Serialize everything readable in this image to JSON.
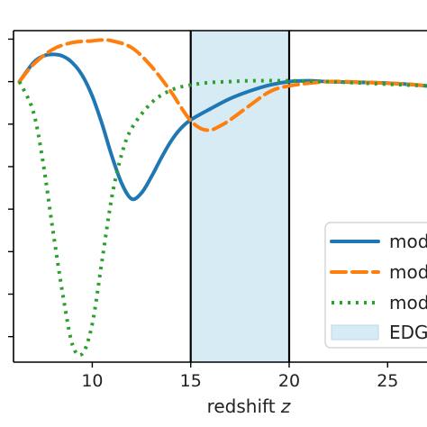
{
  "chart_data": {
    "type": "line",
    "xlabel": "redshift z",
    "xlim": [
      6,
      27
    ],
    "ylim": [
      -3.3,
      0.6
    ],
    "x_ticks": [
      10,
      15,
      20,
      25
    ],
    "y_ticks": [
      -3,
      -2.5,
      -2,
      -1.5,
      -1,
      -0.5,
      0,
      0.5
    ],
    "x_tick_labels": [
      "10",
      "15",
      "20",
      "25"
    ],
    "grid": false,
    "legend": {
      "position": "right",
      "entries": [
        "mod",
        "mod",
        "mod",
        "EDG"
      ]
    },
    "band": {
      "x_start": 15,
      "x_end": 20,
      "color": "#d7ebf5",
      "label": "EDG"
    },
    "vlines": [
      15,
      20
    ],
    "series": [
      {
        "name": "mod",
        "color": "#1f77b4",
        "style": "solid",
        "x": [
          6.3,
          7,
          7.5,
          8,
          8.5,
          9,
          9.5,
          10,
          10.5,
          11,
          11.5,
          12,
          12.5,
          13,
          13.5,
          14,
          14.5,
          15,
          16,
          17,
          18,
          19,
          20,
          21,
          22,
          24,
          26,
          27
        ],
        "y": [
          0,
          0.22,
          0.3,
          0.32,
          0.3,
          0.22,
          0.07,
          -0.17,
          -0.5,
          -0.88,
          -1.2,
          -1.38,
          -1.31,
          -1.12,
          -0.9,
          -0.7,
          -0.55,
          -0.45,
          -0.32,
          -0.2,
          -0.11,
          -0.04,
          0,
          0.01,
          0,
          -0.01,
          -0.03,
          -0.05
        ]
      },
      {
        "name": "mod",
        "color": "#ff7f0e",
        "style": "dashed",
        "x": [
          6.3,
          7,
          8,
          9,
          10,
          10.5,
          11,
          12,
          13,
          14,
          14.5,
          15,
          15.5,
          16,
          16.5,
          17,
          18,
          19,
          20,
          22,
          24,
          26,
          27
        ],
        "y": [
          0,
          0.2,
          0.38,
          0.46,
          0.48,
          0.49,
          0.48,
          0.4,
          0.18,
          -0.12,
          -0.3,
          -0.46,
          -0.55,
          -0.57,
          -0.52,
          -0.45,
          -0.28,
          -0.12,
          -0.05,
          0,
          -0.01,
          -0.03,
          -0.05
        ]
      },
      {
        "name": "mod",
        "color": "#2ca02c",
        "style": "dotted",
        "x": [
          6.3,
          7,
          7.5,
          8,
          8.5,
          9,
          9.5,
          10,
          10.5,
          11,
          11.5,
          12,
          13,
          14,
          15,
          16,
          17,
          18,
          20,
          22,
          24,
          27
        ],
        "y": [
          0,
          -0.35,
          -0.95,
          -1.75,
          -2.5,
          -3.1,
          -3.2,
          -2.85,
          -2.1,
          -1.35,
          -0.85,
          -0.55,
          -0.25,
          -0.1,
          -0.04,
          -0.01,
          0,
          0.01,
          0.01,
          0,
          -0.02,
          -0.05
        ]
      }
    ]
  }
}
